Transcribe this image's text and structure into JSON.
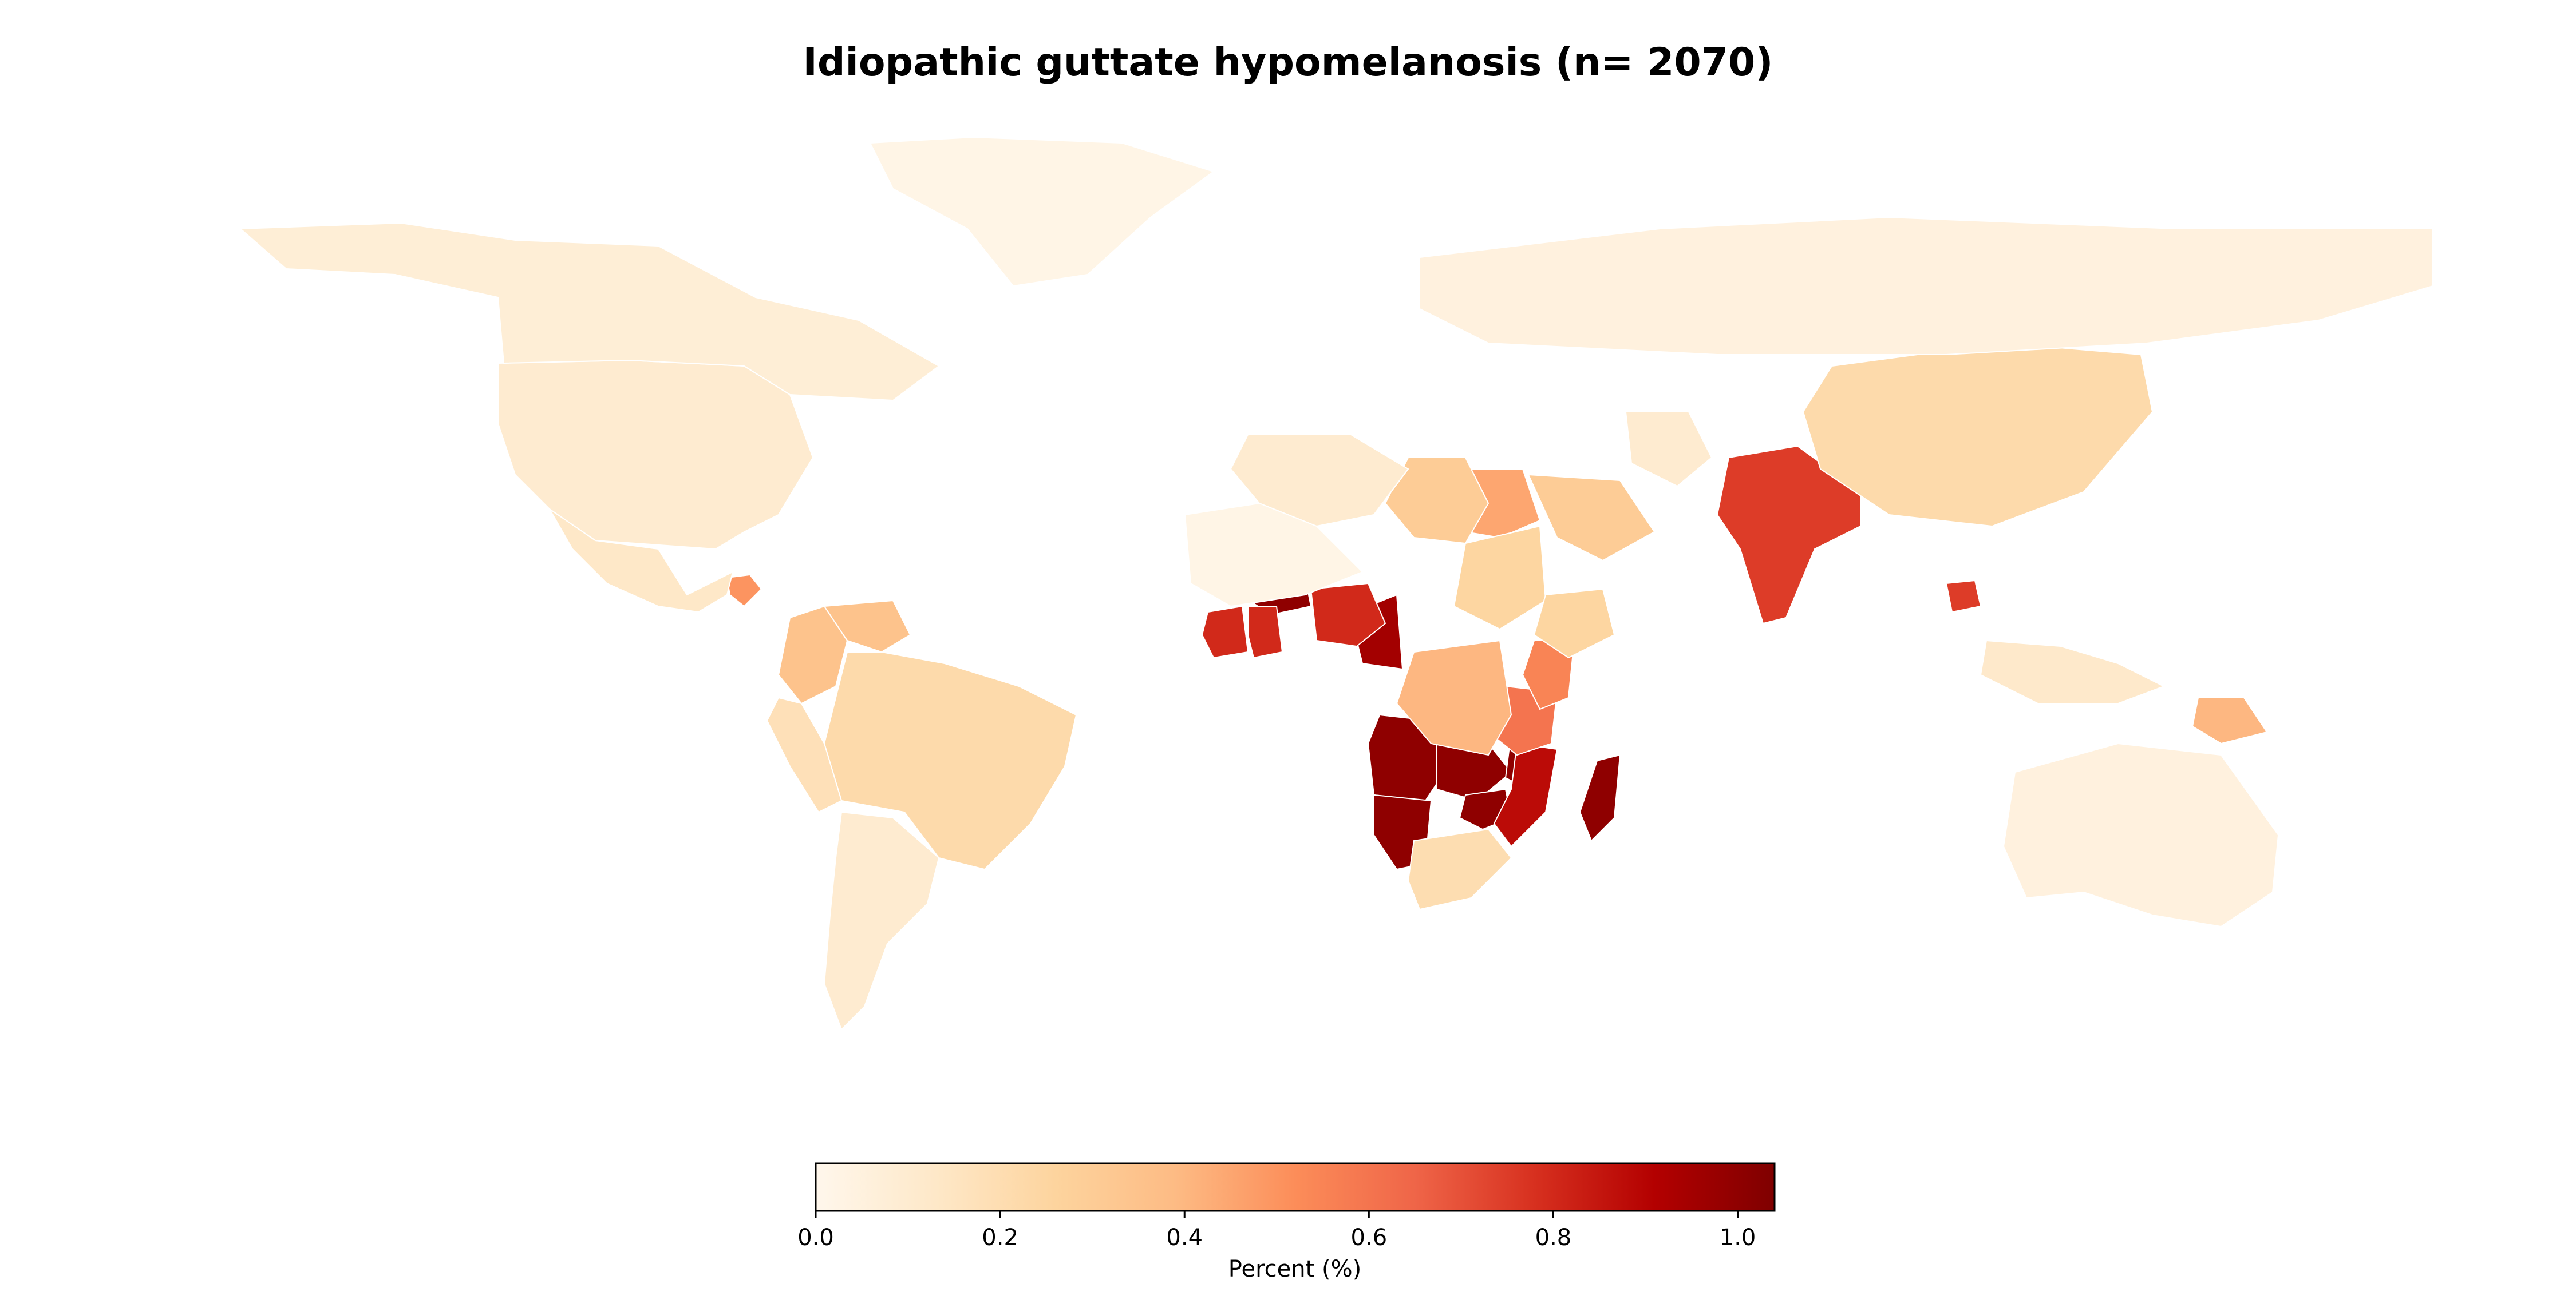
{
  "title": "Idiopathic guttate hypomelanosis (n= 2070)",
  "colorbar": {
    "label": "Percent (%)",
    "ticks": [
      "0.0",
      "0.2",
      "0.4",
      "0.6",
      "0.8",
      "1.0"
    ],
    "colormap": "OrRd",
    "stops": [
      "#fff7ec",
      "#fee8c8",
      "#fdd49e",
      "#fdbb84",
      "#fc8d59",
      "#ef6548",
      "#d7301f",
      "#b30000",
      "#7f0000"
    ]
  },
  "chart_data": {
    "type": "heatmap",
    "title": "Idiopathic guttate hypomelanosis (n= 2070)",
    "value_label": "Percent (%)",
    "range": [
      0,
      1.04
    ],
    "regions": [
      {
        "region": "Angola",
        "value": 1.0
      },
      {
        "region": "Namibia",
        "value": 1.0
      },
      {
        "region": "Zambia",
        "value": 1.0
      },
      {
        "region": "Malawi",
        "value": 1.0
      },
      {
        "region": "Zimbabwe",
        "value": 1.0
      },
      {
        "region": "Madagascar",
        "value": 1.0
      },
      {
        "region": "Burkina Faso",
        "value": 1.0
      },
      {
        "region": "Cameroon",
        "value": 0.95
      },
      {
        "region": "Mozambique",
        "value": 0.88
      },
      {
        "region": "Nigeria",
        "value": 0.8
      },
      {
        "region": "Ghana",
        "value": 0.8
      },
      {
        "region": "Cote d'Ivoire",
        "value": 0.8
      },
      {
        "region": "India",
        "value": 0.75
      },
      {
        "region": "Cambodia",
        "value": 0.75
      },
      {
        "region": "Tanzania",
        "value": 0.6
      },
      {
        "region": "Kenya",
        "value": 0.55
      },
      {
        "region": "Egypt",
        "value": 0.45
      },
      {
        "region": "Honduras",
        "value": 0.5
      },
      {
        "region": "DR Congo",
        "value": 0.4
      },
      {
        "region": "Papua New Guinea",
        "value": 0.4
      },
      {
        "region": "Colombia",
        "value": 0.35
      },
      {
        "region": "Venezuela",
        "value": 0.35
      },
      {
        "region": "Libya",
        "value": 0.3
      },
      {
        "region": "Saudi Arabia",
        "value": 0.3
      },
      {
        "region": "Sudan",
        "value": 0.25
      },
      {
        "region": "Ethiopia",
        "value": 0.25
      },
      {
        "region": "Brazil",
        "value": 0.22
      },
      {
        "region": "China",
        "value": 0.22
      },
      {
        "region": "Peru",
        "value": 0.18
      },
      {
        "region": "South Africa",
        "value": 0.2
      },
      {
        "region": "Mexico",
        "value": 0.13
      },
      {
        "region": "United States",
        "value": 0.1
      },
      {
        "region": "Canada",
        "value": 0.08
      },
      {
        "region": "Argentina",
        "value": 0.1
      },
      {
        "region": "Algeria",
        "value": 0.1
      },
      {
        "region": "Iran",
        "value": 0.1
      },
      {
        "region": "Indonesia",
        "value": 0.12
      },
      {
        "region": "Russia",
        "value": 0.05
      },
      {
        "region": "Australia",
        "value": 0.05
      },
      {
        "region": "Greenland",
        "value": 0.02
      },
      {
        "region": "Mali",
        "value": 0.02
      }
    ]
  }
}
